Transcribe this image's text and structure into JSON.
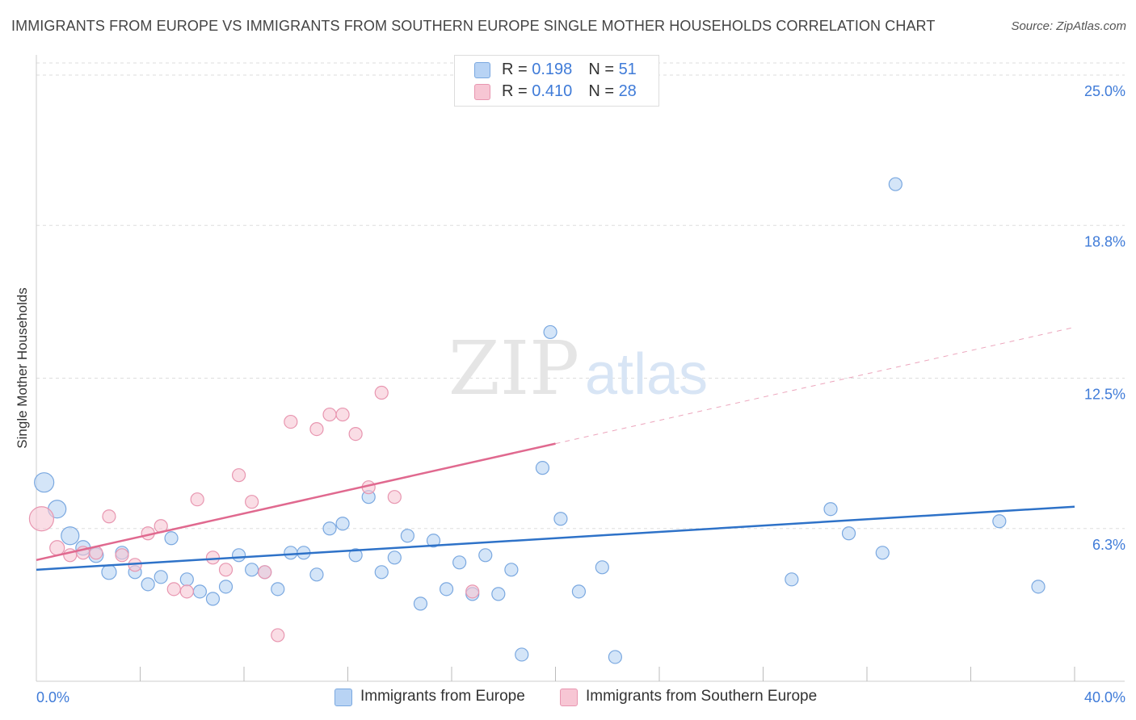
{
  "header": {
    "title": "IMMIGRANTS FROM EUROPE VS IMMIGRANTS FROM SOUTHERN EUROPE SINGLE MOTHER HOUSEHOLDS CORRELATION CHART",
    "source": "Source: ZipAtlas.com"
  },
  "watermark": {
    "zip": "ZIP",
    "atlas": "atlas"
  },
  "legend": {
    "europe": {
      "r_label": "R = ",
      "r_value": "0.198",
      "n_label": "N = ",
      "n_value": "51"
    },
    "southern": {
      "r_label": "R = ",
      "r_value": "0.410",
      "n_label": "N = ",
      "n_value": "28"
    }
  },
  "bottom_legend": {
    "europe": "Immigrants from Europe",
    "southern": "Immigrants from Southern Europe"
  },
  "colors": {
    "europe_fill": "#b8d3f4",
    "europe_stroke": "#7aa8e0",
    "europe_line": "#2e72c8",
    "southern_fill": "#f7c6d4",
    "southern_stroke": "#e896b0",
    "southern_line": "#e0698f",
    "tick_label": "#3f7bd8",
    "grid": "#dddddd"
  },
  "chart_data": {
    "type": "scatter",
    "title": "IMMIGRANTS FROM EUROPE VS IMMIGRANTS FROM SOUTHERN EUROPE SINGLE MOTHER HOUSEHOLDS CORRELATION CHART",
    "xlabel": "",
    "ylabel": "Single Mother Households",
    "xlim": [
      0,
      40
    ],
    "ylim": [
      0,
      25.5
    ],
    "x_tick_labels": [
      {
        "value": 0,
        "label": "0.0%"
      },
      {
        "value": 40,
        "label": "40.0%"
      }
    ],
    "y_tick_labels": [
      {
        "value": 6.3,
        "label": "6.3%"
      },
      {
        "value": 12.5,
        "label": "12.5%"
      },
      {
        "value": 18.8,
        "label": "18.8%"
      },
      {
        "value": 25.0,
        "label": "25.0%"
      }
    ],
    "x_minor_ticks": [
      4,
      8,
      12,
      16,
      20,
      24,
      28,
      32,
      36,
      40
    ],
    "grid": true,
    "legend_position": "top-center",
    "series": [
      {
        "name": "Immigrants from Europe",
        "R": 0.198,
        "N": 51,
        "trend": {
          "x": [
            0,
            40
          ],
          "y": [
            4.6,
            7.2
          ]
        },
        "points": [
          [
            0.3,
            8.2,
            12
          ],
          [
            0.8,
            7.1,
            11
          ],
          [
            1.3,
            6.0,
            11
          ],
          [
            1.8,
            5.5,
            9
          ],
          [
            2.3,
            5.2,
            9
          ],
          [
            2.8,
            4.5,
            9
          ],
          [
            3.3,
            5.3,
            8
          ],
          [
            3.8,
            4.5,
            8
          ],
          [
            4.3,
            4.0,
            8
          ],
          [
            4.8,
            4.3,
            8
          ],
          [
            5.2,
            5.9,
            8
          ],
          [
            5.8,
            4.2,
            8
          ],
          [
            6.3,
            3.7,
            8
          ],
          [
            6.8,
            3.4,
            8
          ],
          [
            7.3,
            3.9,
            8
          ],
          [
            7.8,
            5.2,
            8
          ],
          [
            8.3,
            4.6,
            8
          ],
          [
            8.8,
            4.5,
            8
          ],
          [
            9.3,
            3.8,
            8
          ],
          [
            9.8,
            5.3,
            8
          ],
          [
            10.3,
            5.3,
            8
          ],
          [
            10.8,
            4.4,
            8
          ],
          [
            11.3,
            6.3,
            8
          ],
          [
            11.8,
            6.5,
            8
          ],
          [
            12.3,
            5.2,
            8
          ],
          [
            12.8,
            7.6,
            8
          ],
          [
            13.3,
            4.5,
            8
          ],
          [
            13.8,
            5.1,
            8
          ],
          [
            14.3,
            6.0,
            8
          ],
          [
            14.8,
            3.2,
            8
          ],
          [
            15.3,
            5.8,
            8
          ],
          [
            15.8,
            3.8,
            8
          ],
          [
            16.3,
            4.9,
            8
          ],
          [
            16.8,
            3.6,
            8
          ],
          [
            17.3,
            5.2,
            8
          ],
          [
            17.8,
            3.6,
            8
          ],
          [
            18.3,
            4.6,
            8
          ],
          [
            18.7,
            1.1,
            8
          ],
          [
            19.5,
            8.8,
            8
          ],
          [
            19.8,
            14.4,
            8
          ],
          [
            20.2,
            6.7,
            8
          ],
          [
            20.9,
            3.7,
            8
          ],
          [
            21.8,
            4.7,
            8
          ],
          [
            22.3,
            1.0,
            8
          ],
          [
            29.1,
            4.2,
            8
          ],
          [
            30.6,
            7.1,
            8
          ],
          [
            31.3,
            6.1,
            8
          ],
          [
            32.6,
            5.3,
            8
          ],
          [
            33.1,
            20.5,
            8
          ],
          [
            37.1,
            6.6,
            8
          ],
          [
            38.6,
            3.9,
            8
          ]
        ]
      },
      {
        "name": "Immigrants from Southern Europe",
        "R": 0.41,
        "N": 28,
        "trend": {
          "x": [
            0,
            20
          ],
          "y": [
            5.0,
            9.8
          ],
          "dashed_extension": {
            "x": [
              20,
              40
            ],
            "y": [
              9.8,
              14.6
            ]
          }
        },
        "points": [
          [
            0.2,
            6.7,
            15
          ],
          [
            0.8,
            5.5,
            9
          ],
          [
            1.3,
            5.2,
            8
          ],
          [
            1.8,
            5.3,
            8
          ],
          [
            2.3,
            5.3,
            8
          ],
          [
            2.8,
            6.8,
            8
          ],
          [
            3.3,
            5.2,
            8
          ],
          [
            3.8,
            4.8,
            8
          ],
          [
            4.3,
            6.1,
            8
          ],
          [
            4.8,
            6.4,
            8
          ],
          [
            5.3,
            3.8,
            8
          ],
          [
            5.8,
            3.7,
            8
          ],
          [
            6.2,
            7.5,
            8
          ],
          [
            6.8,
            5.1,
            8
          ],
          [
            7.3,
            4.6,
            8
          ],
          [
            7.8,
            8.5,
            8
          ],
          [
            8.3,
            7.4,
            8
          ],
          [
            8.8,
            4.5,
            8
          ],
          [
            9.3,
            1.9,
            8
          ],
          [
            9.8,
            10.7,
            8
          ],
          [
            10.8,
            10.4,
            8
          ],
          [
            11.3,
            11.0,
            8
          ],
          [
            11.8,
            11.0,
            8
          ],
          [
            12.3,
            10.2,
            8
          ],
          [
            12.8,
            8.0,
            8
          ],
          [
            13.3,
            11.9,
            8
          ],
          [
            13.8,
            7.6,
            8
          ],
          [
            16.8,
            3.7,
            8
          ]
        ]
      }
    ]
  }
}
